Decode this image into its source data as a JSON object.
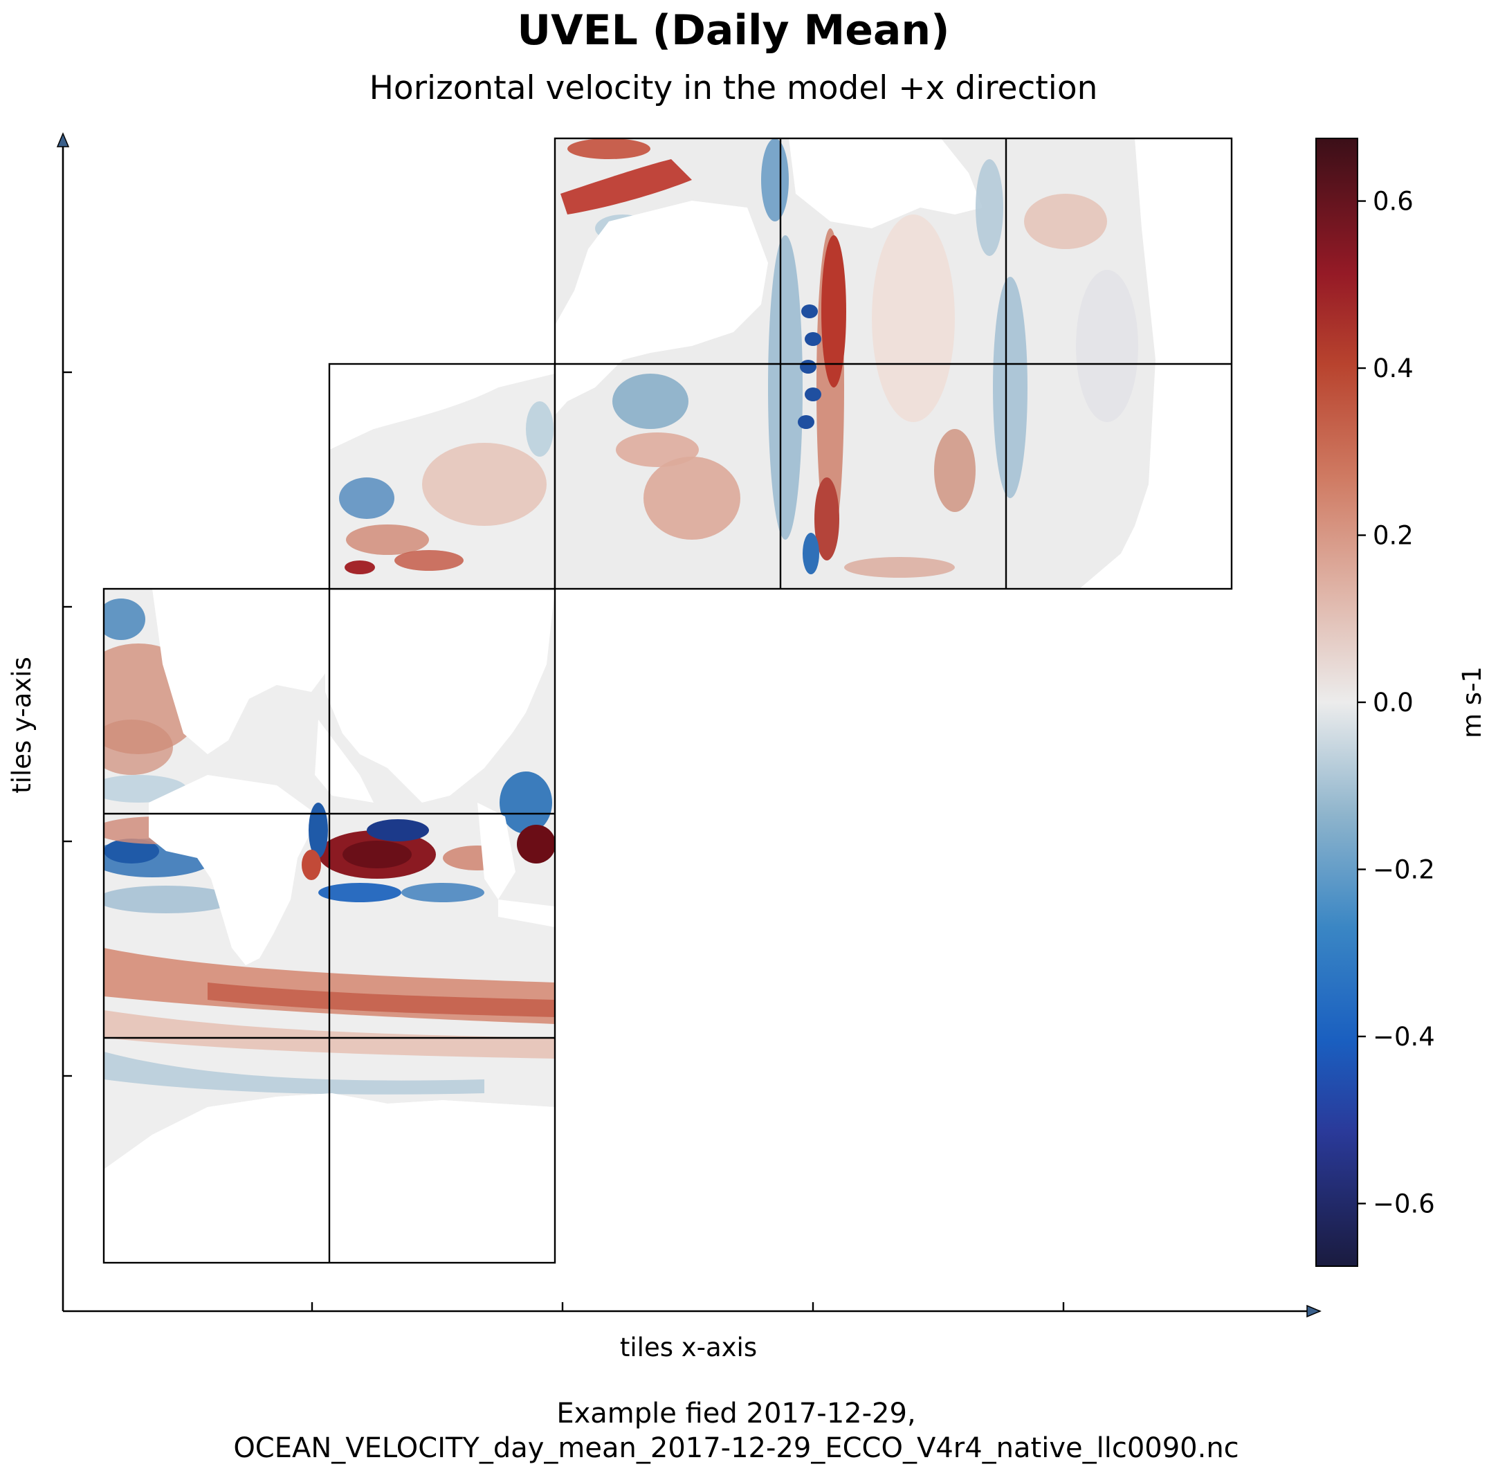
{
  "chart_data": {
    "type": "heatmap",
    "title": "UVEL (Daily Mean)",
    "subtitle": "Horizontal velocity in the model +x direction",
    "xlabel": "tiles x-axis",
    "ylabel": "tiles y-axis",
    "colorbar": {
      "label": "m s-1",
      "colormap": "balance",
      "vmin": -0.675,
      "vmax": 0.675,
      "ticks": [
        -0.6,
        -0.4,
        -0.2,
        0.0,
        0.2,
        0.4,
        0.6
      ],
      "tick_labels": [
        "−0.6",
        "−0.4",
        "−0.2",
        "0.0",
        "0.2",
        "0.4",
        "0.6"
      ]
    },
    "tiles_layout": "llc90 native grid, 13 tiles",
    "caption_line1": "Example fied 2017-12-29,",
    "caption_line2": "OCEAN_VELOCITY_day_mean_2017-12-29_ECCO_V4r4_native_llc0090.nc"
  },
  "colors": {
    "ocean_background": "#ececec",
    "land": "#ffffff",
    "positive_strong": "#6e1418",
    "positive": "#c0453b",
    "positive_weak": "#e0a898",
    "negative_weak": "#a8c3d4",
    "negative": "#2a6fc0",
    "negative_strong": "#15307a"
  }
}
